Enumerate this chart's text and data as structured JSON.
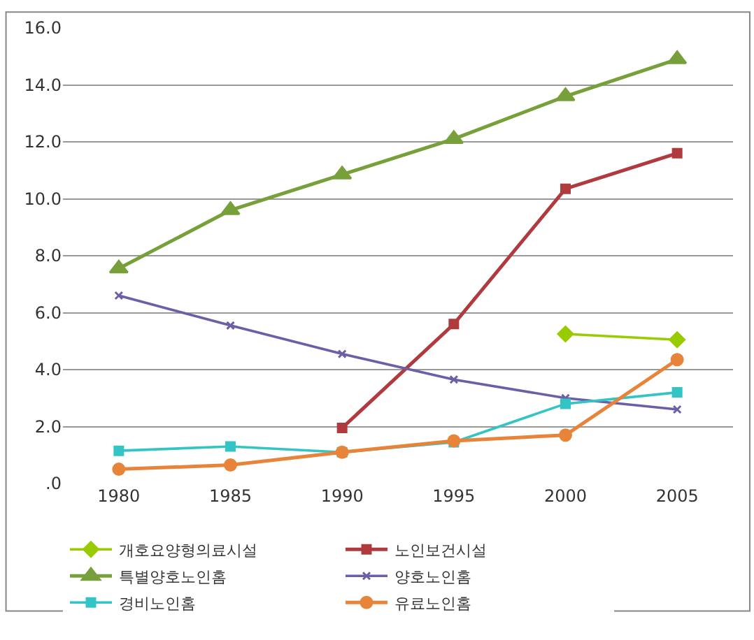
{
  "chart_data": {
    "type": "line",
    "categories": [
      "1980",
      "1985",
      "1990",
      "1995",
      "2000",
      "2005"
    ],
    "series": [
      {
        "name": "개호요양형의료시설",
        "color": "#99cc00",
        "marker": "diamond",
        "values": [
          null,
          null,
          null,
          null,
          5.25,
          5.05
        ]
      },
      {
        "name": "노인보건시설",
        "color": "#b03a3e",
        "marker": "square",
        "values": [
          null,
          null,
          1.95,
          5.6,
          10.35,
          11.6
        ]
      },
      {
        "name": "특별양호노인홈",
        "color": "#77a03b",
        "marker": "triangle",
        "values": [
          7.55,
          9.6,
          10.85,
          12.1,
          13.6,
          14.9
        ]
      },
      {
        "name": "양호노인홈",
        "color": "#6b5fa8",
        "marker": "cross",
        "values": [
          6.6,
          5.55,
          4.55,
          3.65,
          3.0,
          2.6
        ]
      },
      {
        "name": "경비노인홈",
        "color": "#33c5c5",
        "marker": "square",
        "values": [
          1.15,
          1.3,
          1.1,
          1.45,
          2.8,
          3.2
        ]
      },
      {
        "name": "유료노인홈",
        "color": "#e8843a",
        "marker": "circle",
        "values": [
          0.5,
          0.65,
          1.1,
          1.5,
          1.7,
          4.35
        ]
      }
    ],
    "ylim": [
      0,
      16
    ],
    "yticks": [
      {
        "value": 0,
        "label": ".0"
      },
      {
        "value": 2,
        "label": "2.0"
      },
      {
        "value": 4,
        "label": "4.0"
      },
      {
        "value": 6,
        "label": "6.0"
      },
      {
        "value": 8,
        "label": "8.0"
      },
      {
        "value": 10,
        "label": "10.0"
      },
      {
        "value": 12,
        "label": "12.0"
      },
      {
        "value": 14,
        "label": "14.0"
      },
      {
        "value": 16,
        "label": "16.0"
      }
    ],
    "grid": "y",
    "legend": "bottom",
    "line_style": "solid"
  }
}
